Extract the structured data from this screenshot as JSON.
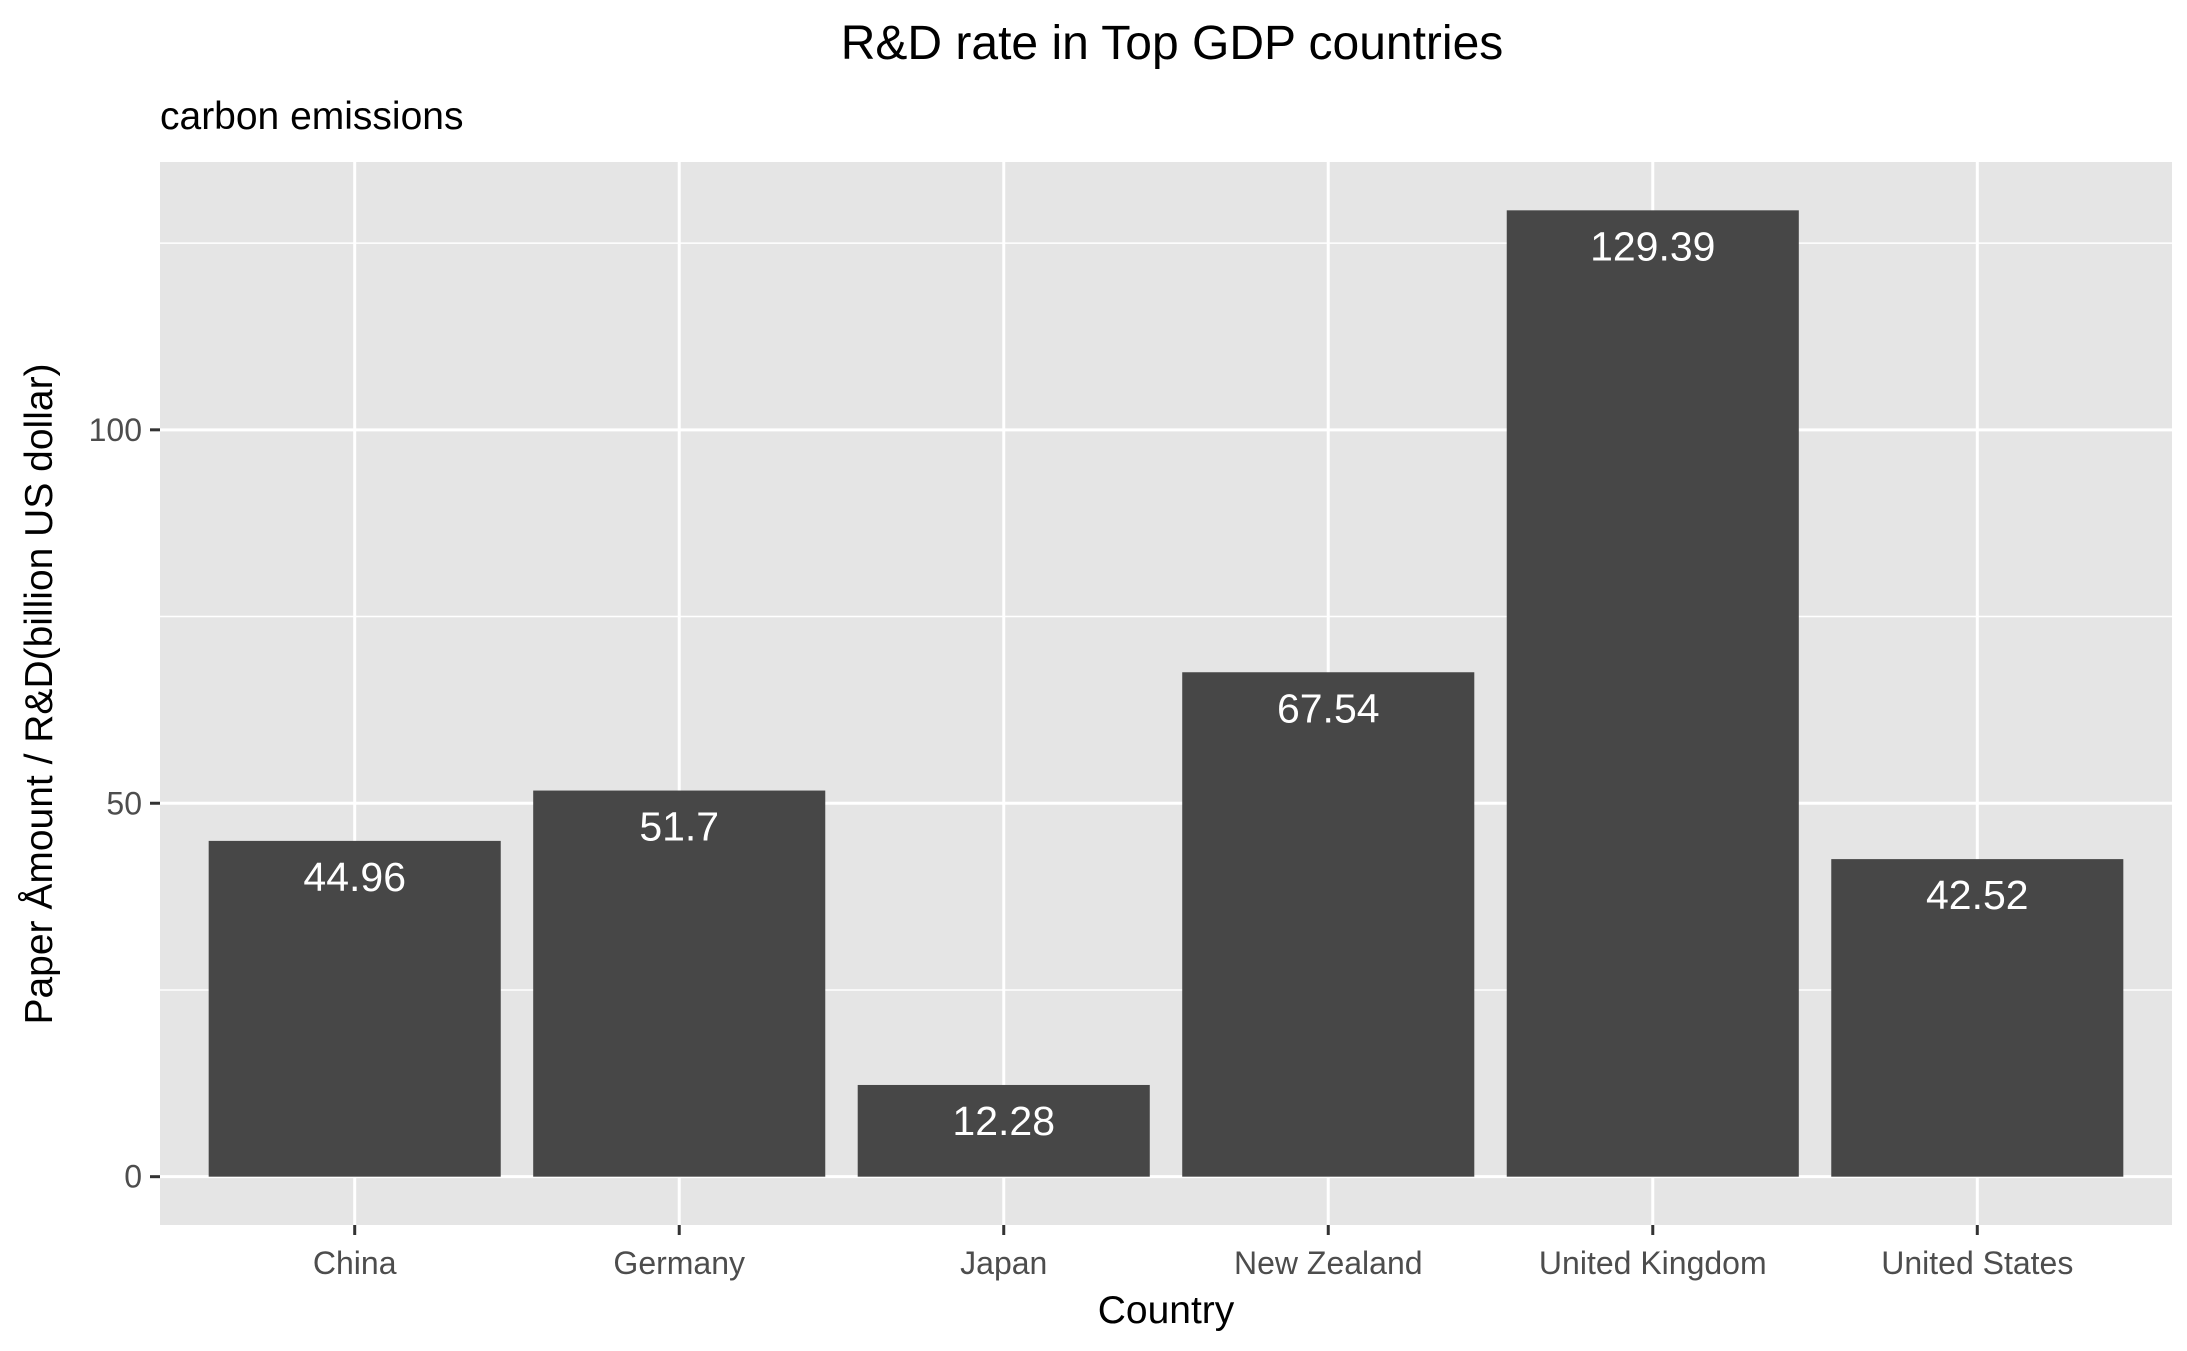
{
  "chart_data": {
    "type": "bar",
    "title": "R&D rate in Top GDP countries",
    "subtitle": "carbon emissions",
    "xlabel": "Country",
    "ylabel": "Paper Åmount / R&D(billion US dollar)",
    "categories": [
      "China",
      "Germany",
      "Japan",
      "New Zealand",
      "United Kingdom",
      "United States"
    ],
    "values": [
      44.96,
      51.7,
      12.28,
      67.54,
      129.39,
      42.52
    ],
    "value_labels": [
      "44.96",
      "51.7",
      "12.28",
      "67.54",
      "129.39",
      "42.52"
    ],
    "ylim": [
      -6.47,
      135.86
    ],
    "yticks": [
      0,
      50,
      100
    ],
    "yticks_minor": [
      25,
      75,
      125
    ],
    "grid": true,
    "legend": "none",
    "colors": {
      "panel": "#e5e5e5",
      "grid": "#ffffff",
      "bar": "#474747",
      "label": "#ffffff"
    }
  }
}
